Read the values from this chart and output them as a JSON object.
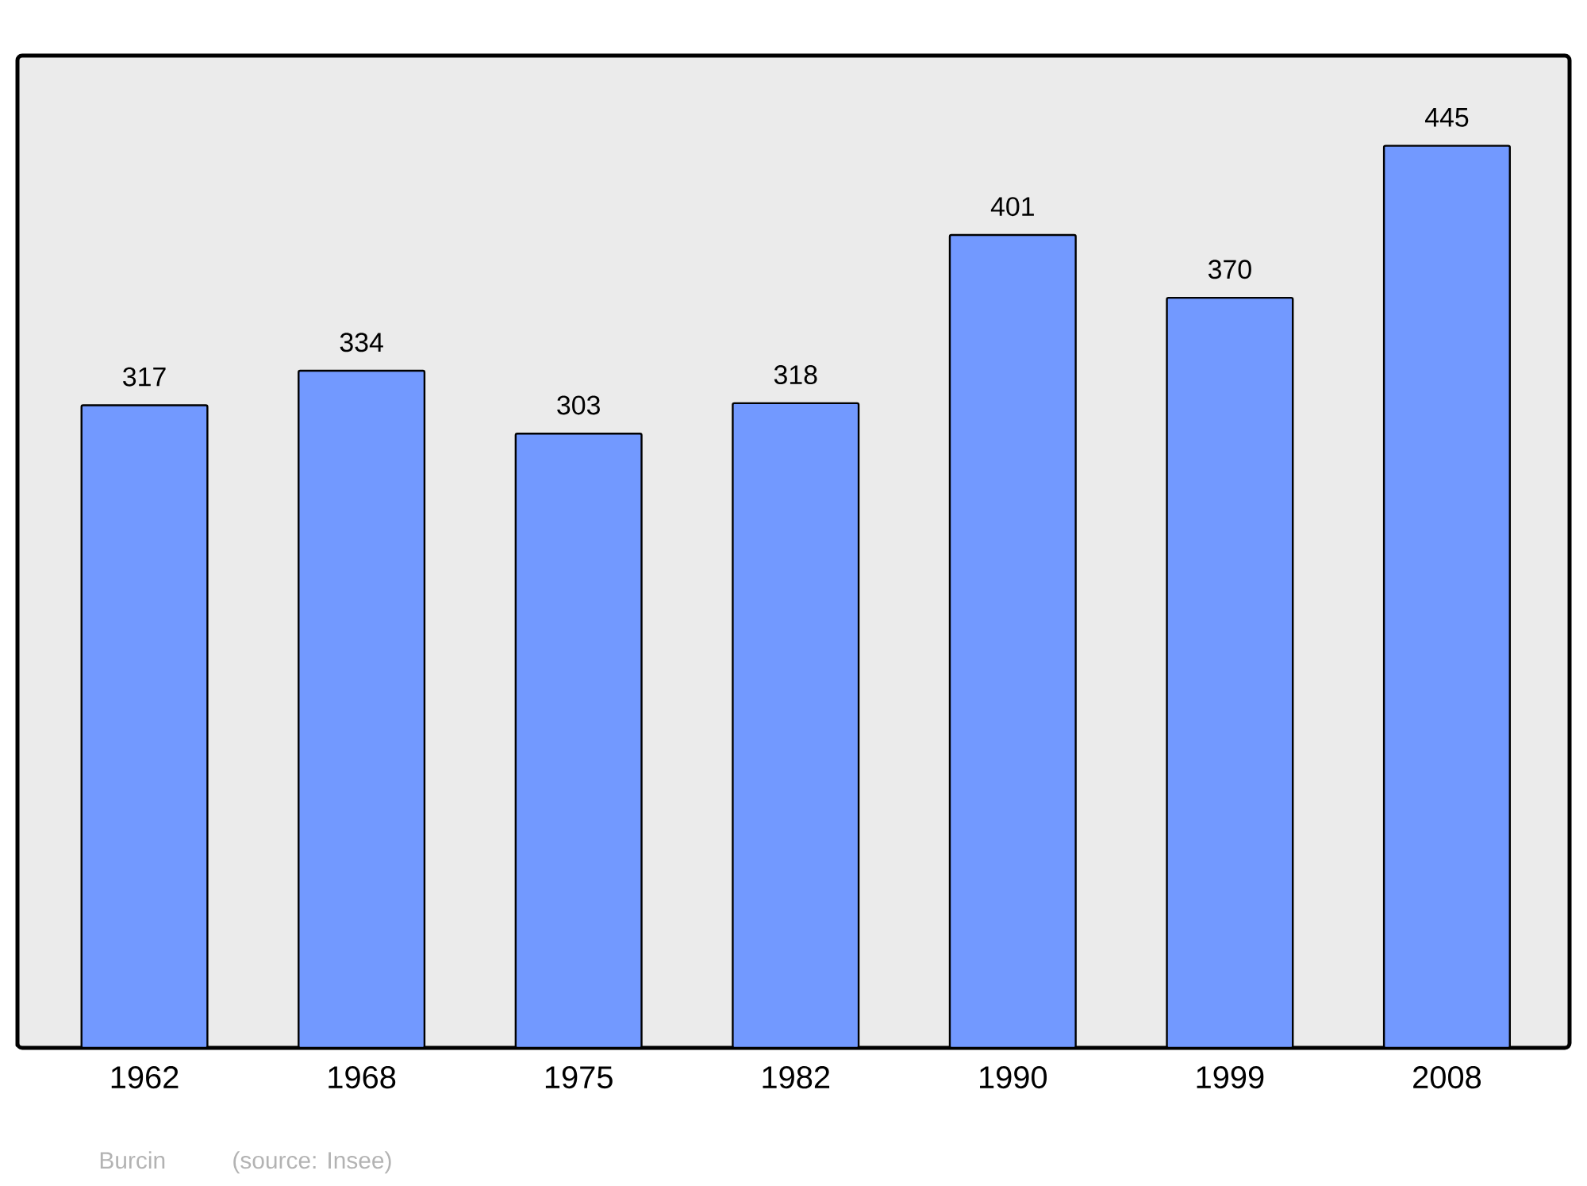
{
  "chart_data": {
    "type": "bar",
    "categories": [
      "1962",
      "1968",
      "1975",
      "1982",
      "1990",
      "1999",
      "2008"
    ],
    "values": [
      317,
      334,
      303,
      318,
      401,
      370,
      445
    ],
    "color": "#7299ff",
    "data_labels": true,
    "annotations": [
      "Burcin",
      "(source: Insee)"
    ]
  }
}
